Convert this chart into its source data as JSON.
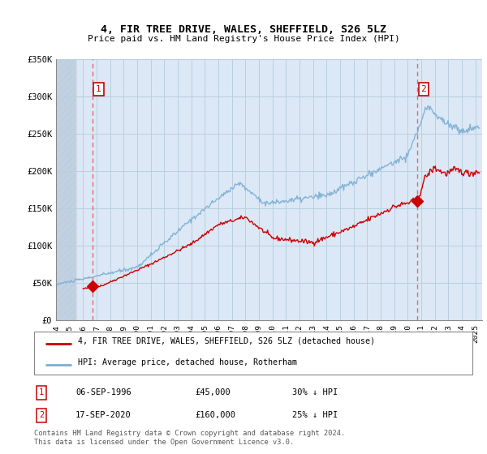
{
  "title": "4, FIR TREE DRIVE, WALES, SHEFFIELD, S26 5LZ",
  "subtitle": "Price paid vs. HM Land Registry's House Price Index (HPI)",
  "ylabel_ticks": [
    "£0",
    "£50K",
    "£100K",
    "£150K",
    "£200K",
    "£250K",
    "£300K",
    "£350K"
  ],
  "ylim": [
    0,
    350000
  ],
  "xlim_start": 1994.0,
  "xlim_end": 2025.5,
  "hpi_color": "#7aaed4",
  "price_color": "#cc0000",
  "transaction1_x": 1996.69,
  "transaction1_y": 45000,
  "transaction2_x": 2020.72,
  "transaction2_y": 160000,
  "legend_entry1": "4, FIR TREE DRIVE, WALES, SHEFFIELD, S26 5LZ (detached house)",
  "legend_entry2": "HPI: Average price, detached house, Rotherham",
  "table_row1": [
    "1",
    "06-SEP-1996",
    "£45,000",
    "30% ↓ HPI"
  ],
  "table_row2": [
    "2",
    "17-SEP-2020",
    "£160,000",
    "25% ↓ HPI"
  ],
  "footnote1": "Contains HM Land Registry data © Crown copyright and database right 2024.",
  "footnote2": "This data is licensed under the Open Government Licence v3.0.",
  "bg_hatch_color": "#d0d8e8",
  "chart_bg": "#dce8f5",
  "grid_color": "#b8cfe0",
  "dashed_line_color": "#e06060"
}
